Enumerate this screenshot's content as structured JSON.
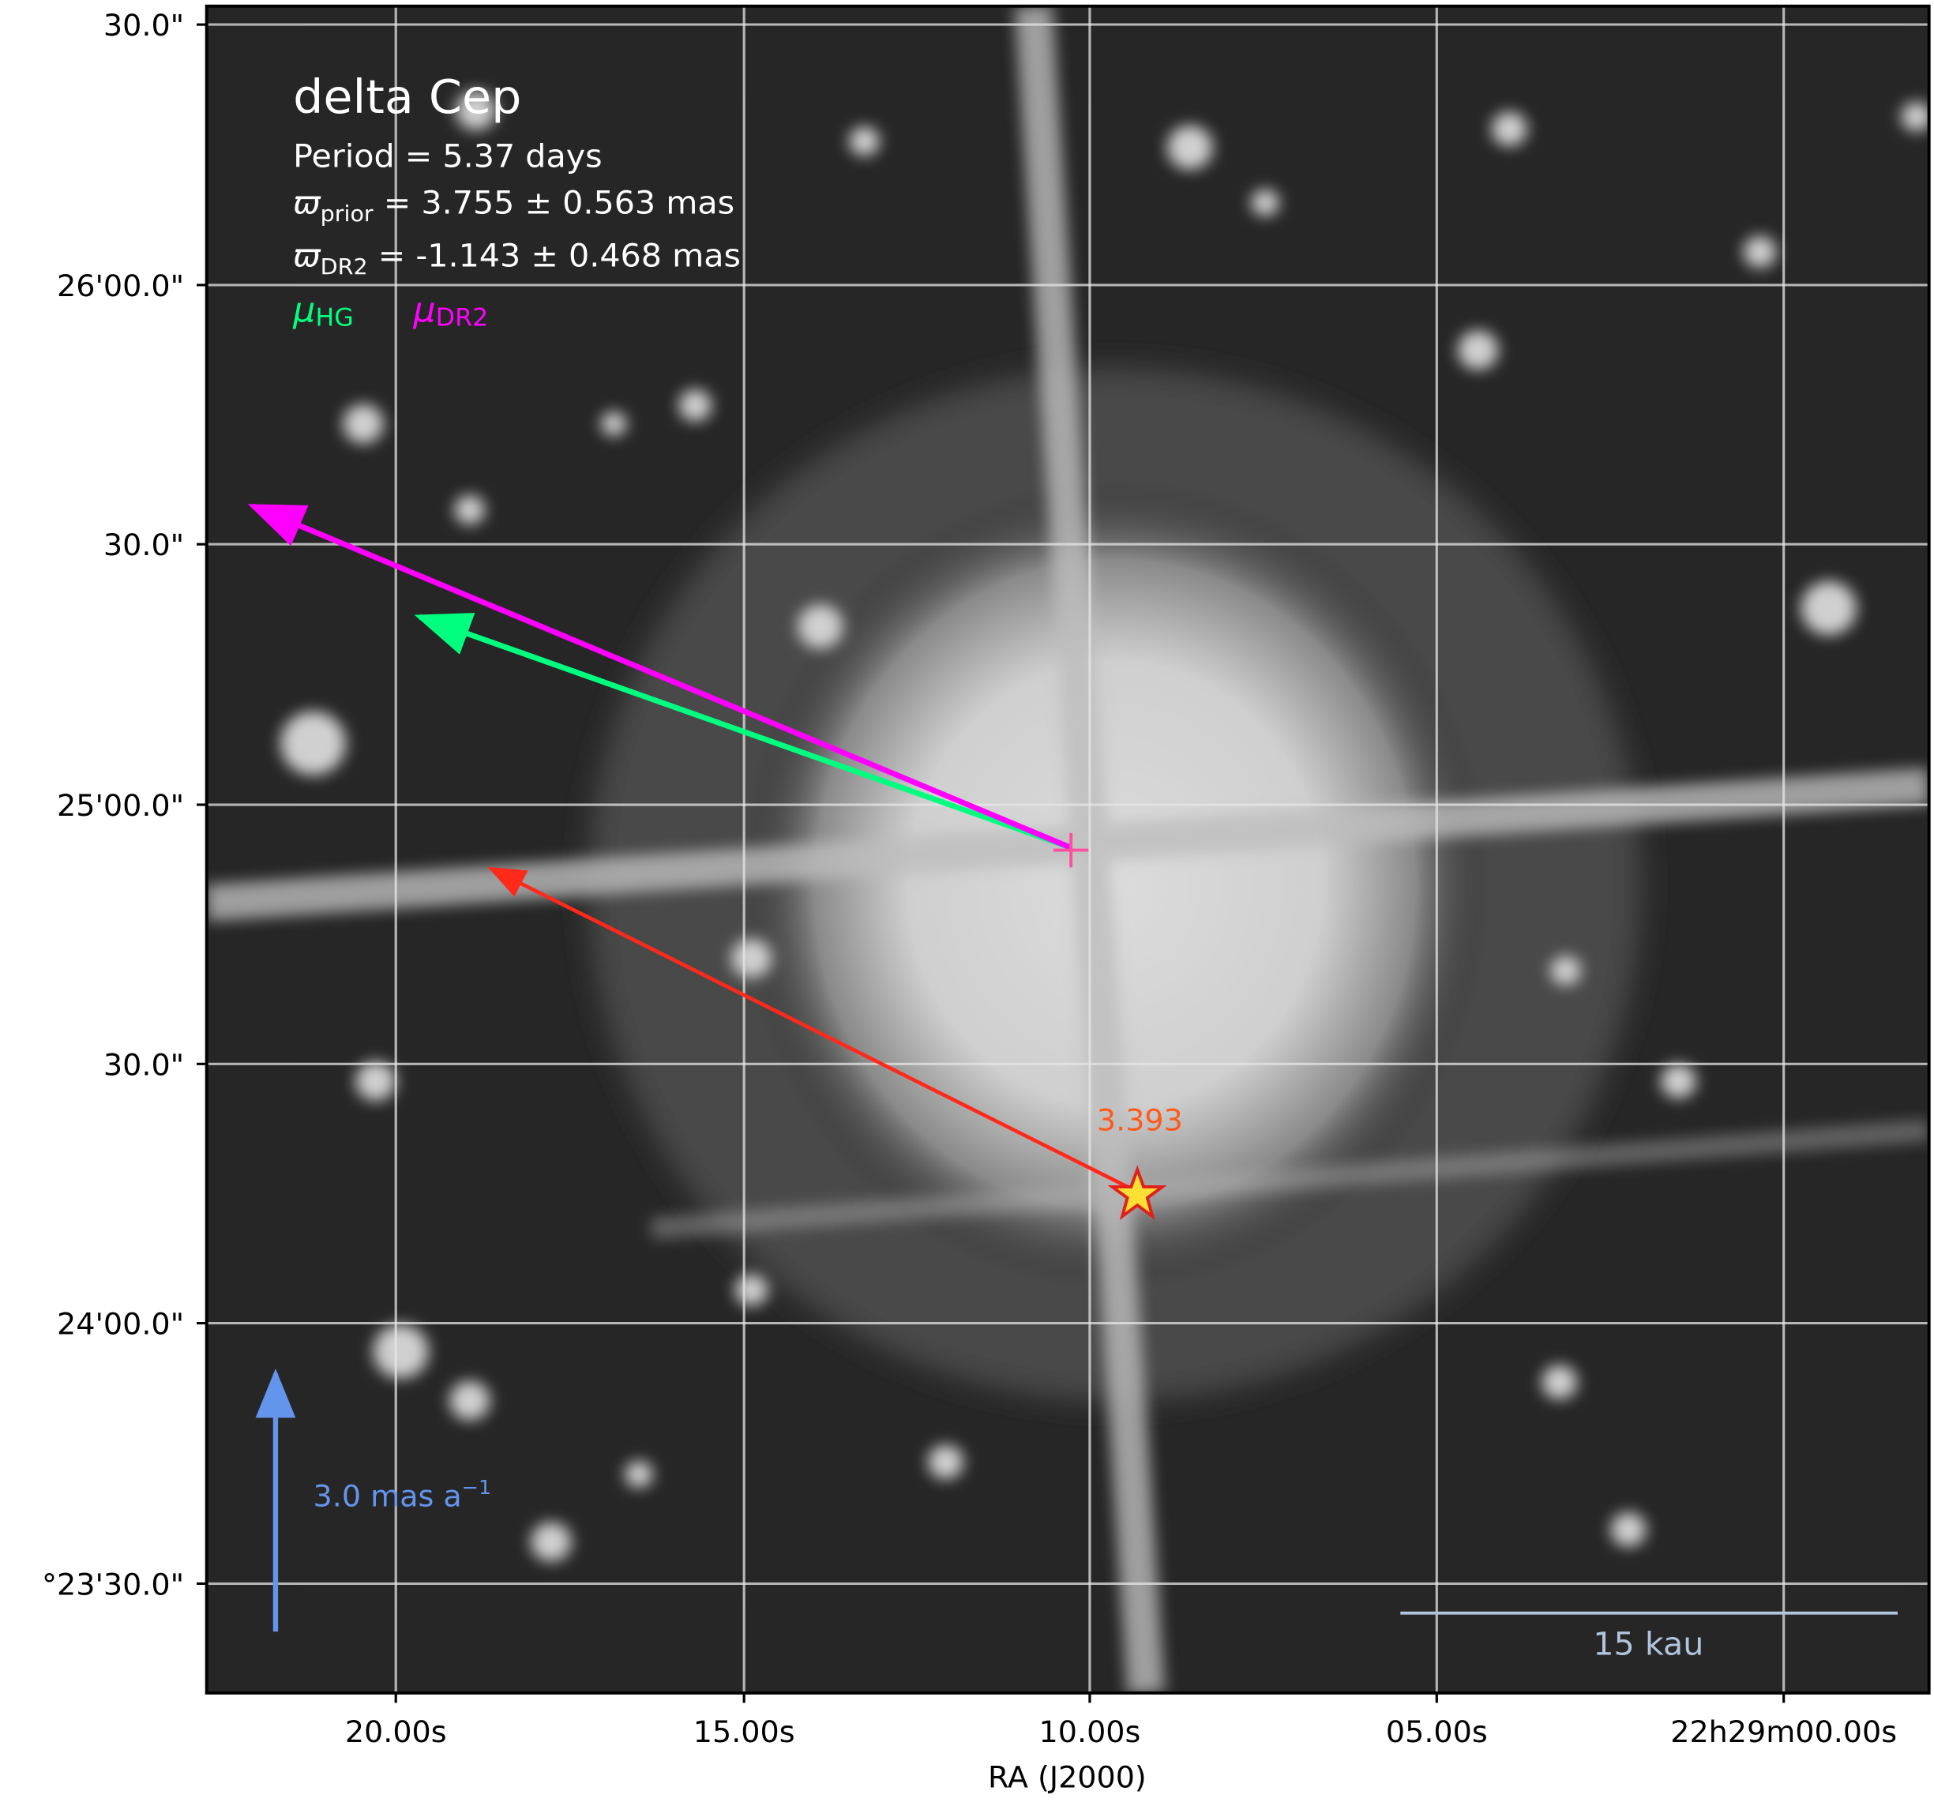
{
  "title": "delta Cep",
  "info": {
    "period": "Period =   5.37 days",
    "prior": {
      "symbol": "ϖ",
      "sub": "prior",
      "text": " = 3.755 ± 0.563 mas"
    },
    "dr2": {
      "symbol": "ϖ",
      "sub": "DR2",
      "text": " = -1.143 ± 0.468 mas"
    }
  },
  "legend": [
    {
      "symbol": "μ",
      "sub": "HG"
    },
    {
      "symbol": "μ",
      "sub": "DR2"
    }
  ],
  "marker_label": "3.393",
  "pm_scale": {
    "text": "3.0 mas a",
    "sup": "−1"
  },
  "scale_bar": "15 kau",
  "x_axis": {
    "label": "RA (J2000)",
    "ticks": [
      "20.00s",
      "15.00s",
      "10.00s",
      "05.00s",
      "22h29m00.00s"
    ]
  },
  "y_axis": {
    "ticks": [
      "30.0\"",
      "26'00.0\"",
      "30.0\"",
      "25'00.0\"",
      "30.0\"",
      "24'00.0\"",
      "°23'30.0\""
    ]
  }
}
